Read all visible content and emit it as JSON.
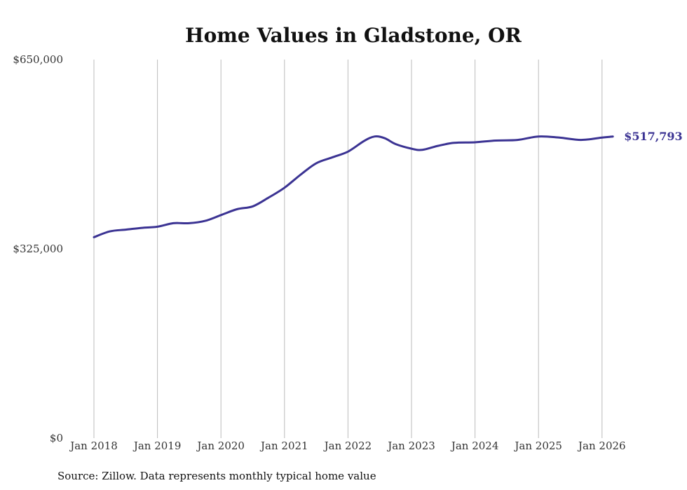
{
  "chart_data": {
    "type": "line",
    "title": "Home Values in Gladstone, OR",
    "xlabel": "",
    "ylabel": "",
    "ylim": [
      0,
      650000
    ],
    "xlim": [
      2018.0,
      2026.25
    ],
    "y_ticks": [
      {
        "value": 0,
        "label": "$0"
      },
      {
        "value": 325000,
        "label": "$325,000"
      },
      {
        "value": 650000,
        "label": "$650,000"
      }
    ],
    "x_ticks": [
      {
        "value": 2018,
        "label": "Jan 2018"
      },
      {
        "value": 2019,
        "label": "Jan 2019"
      },
      {
        "value": 2020,
        "label": "Jan 2020"
      },
      {
        "value": 2021,
        "label": "Jan 2021"
      },
      {
        "value": 2022,
        "label": "Jan 2022"
      },
      {
        "value": 2023,
        "label": "Jan 2023"
      },
      {
        "value": 2024,
        "label": "Jan 2024"
      },
      {
        "value": 2025,
        "label": "Jan 2025"
      },
      {
        "value": 2026,
        "label": "Jan 2026"
      }
    ],
    "grid": "vertical",
    "series": [
      {
        "name": "Typical home value",
        "color": "#3b3393",
        "end_label": "$517,793",
        "x": [
          2018.0,
          2018.25,
          2018.5,
          2018.75,
          2019.0,
          2019.25,
          2019.5,
          2019.75,
          2020.0,
          2020.25,
          2020.5,
          2020.75,
          2021.0,
          2021.25,
          2021.5,
          2021.75,
          2022.0,
          2022.25,
          2022.42,
          2022.58,
          2022.75,
          2023.0,
          2023.17,
          2023.42,
          2023.67,
          2024.0,
          2024.33,
          2024.67,
          2025.0,
          2025.33,
          2025.67,
          2026.0,
          2026.17
        ],
        "values": [
          345000,
          355000,
          358000,
          361000,
          363000,
          369000,
          369000,
          373000,
          383000,
          393000,
          398000,
          413000,
          430000,
          452000,
          472000,
          482000,
          492000,
          510000,
          518000,
          515000,
          505000,
          497000,
          495000,
          502000,
          507000,
          508000,
          511000,
          512000,
          518000,
          516000,
          512000,
          516000,
          517793
        ]
      }
    ]
  },
  "source": "Source: Zillow. Data represents monthly typical home value"
}
